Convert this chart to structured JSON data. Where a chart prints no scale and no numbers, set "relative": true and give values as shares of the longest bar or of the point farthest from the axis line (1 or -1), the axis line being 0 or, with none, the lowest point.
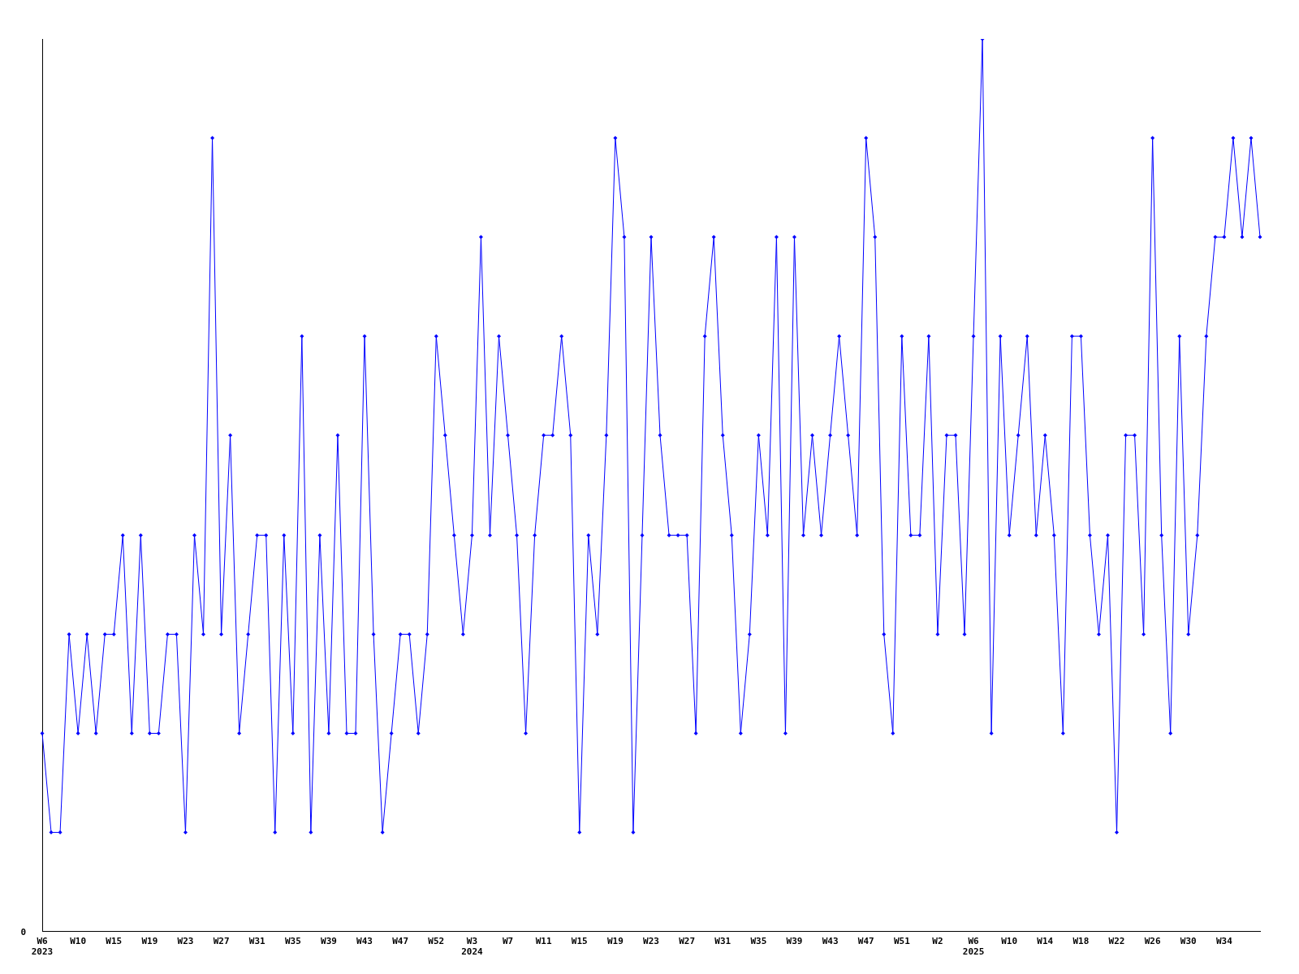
{
  "chart_data": {
    "type": "line",
    "relative": true,
    "marker": "diamond",
    "line_style": "solid",
    "grid": false,
    "legend": false,
    "categories": [
      "W6\n2023",
      null,
      null,
      null,
      "W10",
      null,
      null,
      null,
      "W15",
      null,
      null,
      null,
      "W19",
      null,
      null,
      null,
      "W23",
      null,
      null,
      null,
      "W27",
      null,
      null,
      null,
      "W31",
      null,
      null,
      null,
      "W35",
      null,
      null,
      null,
      "W39",
      null,
      null,
      null,
      "W43",
      null,
      null,
      null,
      "W47",
      null,
      null,
      null,
      "W52",
      null,
      null,
      null,
      "W3\n2024",
      null,
      null,
      null,
      "W7",
      null,
      null,
      null,
      "W11",
      null,
      null,
      null,
      "W15",
      null,
      null,
      null,
      "W19",
      null,
      null,
      null,
      "W23",
      null,
      null,
      null,
      "W27",
      null,
      null,
      null,
      "W31",
      null,
      null,
      null,
      "W35",
      null,
      null,
      null,
      "W39",
      null,
      null,
      null,
      "W43",
      null,
      null,
      null,
      "W47",
      null,
      null,
      null,
      "W51",
      null,
      null,
      null,
      "W2",
      null,
      null,
      null,
      "W6\n2025",
      null,
      null,
      null,
      "W10",
      null,
      null,
      null,
      "W14",
      null,
      null,
      null,
      "W18",
      null,
      null,
      null,
      "W22",
      null,
      null,
      null,
      "W26",
      null,
      null,
      null,
      "W30",
      null,
      null,
      null,
      "W34",
      null,
      null,
      null,
      null
    ],
    "series": [
      {
        "color": "#0000ff",
        "values": [
          0.222,
          0.111,
          0.111,
          0.333,
          0.222,
          0.333,
          0.222,
          0.333,
          0.333,
          0.444,
          0.222,
          0.444,
          0.222,
          0.222,
          0.333,
          0.333,
          0.111,
          0.444,
          0.333,
          0.889,
          0.333,
          0.556,
          0.222,
          0.333,
          0.444,
          0.444,
          0.111,
          0.444,
          0.222,
          0.667,
          0.111,
          0.444,
          0.222,
          0.556,
          0.222,
          0.222,
          0.667,
          0.333,
          0.111,
          0.222,
          0.333,
          0.333,
          0.222,
          0.333,
          0.667,
          0.556,
          0.444,
          0.333,
          0.444,
          0.778,
          0.444,
          0.667,
          0.556,
          0.444,
          0.222,
          0.444,
          0.556,
          0.556,
          0.667,
          0.556,
          0.111,
          0.444,
          0.333,
          0.556,
          0.889,
          0.778,
          0.111,
          0.444,
          0.778,
          0.556,
          0.444,
          0.444,
          0.444,
          0.222,
          0.667,
          0.778,
          0.556,
          0.444,
          0.222,
          0.333,
          0.556,
          0.444,
          0.778,
          0.222,
          0.778,
          0.444,
          0.556,
          0.444,
          0.556,
          0.667,
          0.556,
          0.444,
          0.889,
          0.778,
          0.333,
          0.222,
          0.667,
          0.444,
          0.444,
          0.667,
          0.333,
          0.556,
          0.556,
          0.333,
          0.667,
          1,
          0.222,
          0.667,
          0.444,
          0.556,
          0.667,
          0.444,
          0.556,
          0.444,
          0.222,
          0.667,
          0.667,
          0.444,
          0.333,
          0.444,
          0.111,
          0.556,
          0.556,
          0.333,
          0.889,
          0.444,
          0.222,
          0.667,
          0.333,
          0.444,
          0.667,
          0.778,
          0.778,
          0.889,
          0.778,
          0.889,
          0.778
        ]
      }
    ],
    "annotations": [
      "0"
    ]
  }
}
